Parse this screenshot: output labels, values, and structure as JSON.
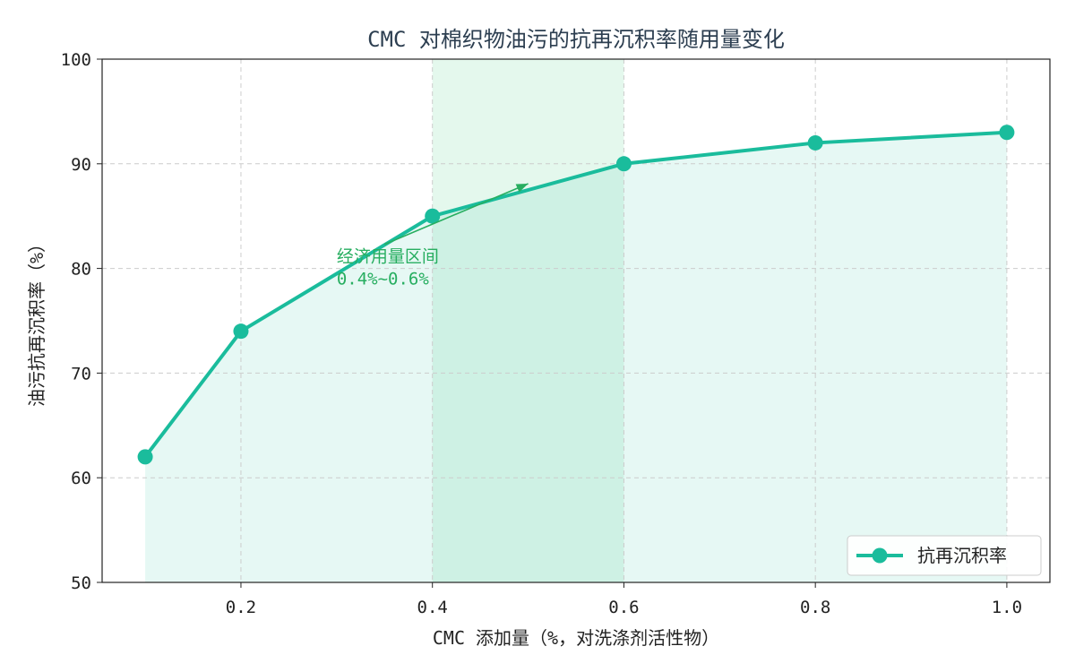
{
  "chart_data": {
    "type": "line",
    "title": "CMC 对棉织物油污的抗再沉积率随用量变化",
    "xlabel": "CMC 添加量（%，对洗涤剂活性物）",
    "ylabel": "油污抗再沉积率（%）",
    "x": [
      0.1,
      0.2,
      0.4,
      0.6,
      0.8,
      1.0
    ],
    "series": [
      {
        "name": "抗再沉积率",
        "values": [
          62,
          74,
          85,
          90,
          92,
          93
        ]
      }
    ],
    "xlim": [
      0.055,
      1.045
    ],
    "ylim": [
      50,
      100
    ],
    "x_ticks": [
      0.2,
      0.4,
      0.6,
      0.8,
      1.0
    ],
    "x_tick_labels": [
      "0.2",
      "0.4",
      "0.6",
      "0.8",
      "1.0"
    ],
    "y_ticks": [
      50,
      60,
      70,
      80,
      90,
      100
    ],
    "y_tick_labels": [
      "50",
      "60",
      "70",
      "80",
      "90",
      "100"
    ],
    "grid": true,
    "legend_position": "bottom-right",
    "area_fill": true,
    "highlight_band": {
      "x_start": 0.4,
      "x_end": 0.6
    },
    "annotation": {
      "lines": [
        "经济用量区间",
        "0.4%~0.6%"
      ],
      "text_x": 0.3,
      "text_y": 80.6,
      "arrow_from_x": 0.35,
      "arrow_from_y": 82.3,
      "arrow_to_x": 0.5,
      "arrow_to_y": 88.1
    },
    "colors": {
      "line": "#1abc9c",
      "area_fill": "#1abc9c",
      "band_fill": "#2ecc71",
      "annotation": "#27ae60",
      "title": "#2c3e50"
    }
  }
}
